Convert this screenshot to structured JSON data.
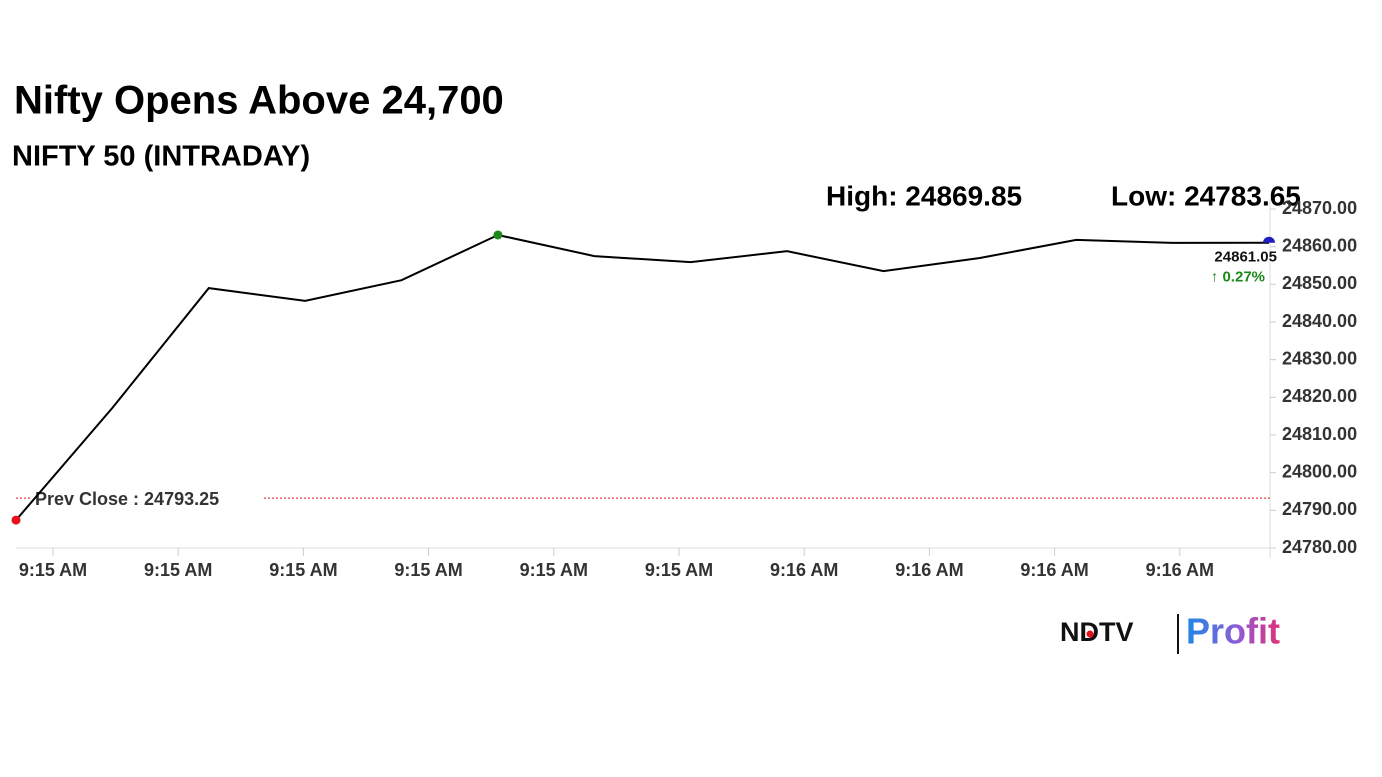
{
  "chart_data": {
    "type": "line",
    "title": "Nifty Opens Above 24,700",
    "subtitle": "NIFTY 50 (INTRADAY)",
    "high_label": "High: 24869.85",
    "low_label": "Low: 24783.65",
    "xtick_labels": [
      "9:15 AM",
      "9:15 AM",
      "9:15 AM",
      "9:15 AM",
      "9:15 AM",
      "9:15 AM",
      "9:16 AM",
      "9:16 AM",
      "9:16 AM",
      "9:16 AM"
    ],
    "series": [
      {
        "color": "#000000",
        "values": [
          24787.4,
          24817.2,
          24849.0,
          24845.6,
          24851.1,
          24863.1,
          24857.5,
          24855.9,
          24858.8,
          24853.5,
          24857.0,
          24861.8,
          24861.0,
          24861.05
        ]
      }
    ],
    "start_color": "#e8111b",
    "high_color": "#1a8a1a",
    "end_color": "#1f1fbf",
    "last_label": "24861.05",
    "change_label": "↑ 0.27%",
    "change_color": "#1a8a1a",
    "prev_close": {
      "value": 24793.25,
      "label": "Prev Close : 24793.25",
      "color": "#e8111b"
    },
    "ylim": [
      24780,
      24870
    ],
    "yticks": [
      {
        "value": 24780,
        "label": "24780.00"
      },
      {
        "value": 24790,
        "label": "24790.00"
      },
      {
        "value": 24800,
        "label": "24800.00"
      },
      {
        "value": 24810,
        "label": "24810.00"
      },
      {
        "value": 24820,
        "label": "24820.00"
      },
      {
        "value": 24830,
        "label": "24830.00"
      },
      {
        "value": 24840,
        "label": "24840.00"
      },
      {
        "value": 24850,
        "label": "24850.00"
      },
      {
        "value": 24860,
        "label": "24860.00"
      },
      {
        "value": 24870,
        "label": "24870.00"
      }
    ],
    "logo": {
      "left": "NDTV",
      "right": "Profit"
    }
  }
}
